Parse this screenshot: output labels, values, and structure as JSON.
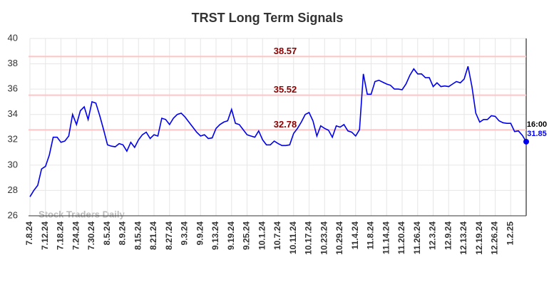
{
  "chart_data": {
    "type": "line",
    "title": "TRST Long Term Signals",
    "categories": [
      "7.8.24",
      null,
      null,
      null,
      "7.12.24",
      null,
      null,
      null,
      "7.18.24",
      null,
      null,
      null,
      "7.24.24",
      null,
      null,
      null,
      "7.30.24",
      null,
      null,
      null,
      "8.5.24",
      null,
      null,
      null,
      "8.9.24",
      null,
      null,
      null,
      "8.15.24",
      null,
      null,
      null,
      "8.21.24",
      null,
      null,
      null,
      "8.27.24",
      null,
      null,
      null,
      "9.3.24",
      null,
      null,
      null,
      "9.9.24",
      null,
      null,
      null,
      "9.13.24",
      null,
      null,
      null,
      "9.19.24",
      null,
      null,
      null,
      "9.25.24",
      null,
      null,
      null,
      "10.1.24",
      null,
      null,
      null,
      "10.7.24",
      null,
      null,
      null,
      "10.11.24",
      null,
      null,
      null,
      "10.17.24",
      null,
      null,
      null,
      "10.23.24",
      null,
      null,
      null,
      "10.29.24",
      null,
      null,
      null,
      "11.4.24",
      null,
      null,
      null,
      "11.8.24",
      null,
      null,
      null,
      "11.14.24",
      null,
      null,
      null,
      "11.20.24",
      null,
      null,
      null,
      "11.26.24",
      null,
      null,
      null,
      "12.3.24",
      null,
      null,
      null,
      "12.9.24",
      null,
      null,
      null,
      "12.13.24",
      null,
      null,
      null,
      "12.19.24",
      null,
      null,
      null,
      "12.26.24",
      null,
      null,
      null,
      "1.2.25",
      null,
      null,
      null,
      null
    ],
    "values": [
      27.5,
      28.0,
      28.4,
      29.7,
      29.9,
      30.8,
      32.2,
      32.2,
      31.8,
      31.9,
      32.3,
      34.0,
      33.2,
      34.3,
      34.6,
      33.6,
      35.0,
      34.9,
      33.9,
      32.8,
      31.6,
      31.5,
      31.45,
      31.7,
      31.6,
      31.1,
      31.8,
      31.4,
      32.0,
      32.4,
      32.6,
      32.1,
      32.4,
      32.3,
      33.7,
      33.6,
      33.2,
      33.7,
      34.0,
      34.1,
      33.8,
      33.4,
      33.0,
      32.6,
      32.3,
      32.4,
      32.1,
      32.15,
      32.9,
      33.2,
      33.4,
      33.5,
      34.4,
      33.3,
      33.2,
      32.8,
      32.4,
      32.3,
      32.2,
      32.7,
      32.0,
      31.6,
      31.6,
      31.9,
      31.7,
      31.55,
      31.55,
      31.6,
      32.5,
      32.9,
      33.4,
      34.0,
      34.15,
      33.5,
      32.3,
      33.1,
      32.9,
      32.75,
      32.2,
      33.1,
      33.0,
      33.2,
      32.7,
      32.6,
      32.3,
      32.8,
      37.2,
      35.6,
      35.6,
      36.6,
      36.7,
      36.55,
      36.4,
      36.3,
      36.0,
      36.0,
      35.95,
      36.4,
      37.1,
      37.6,
      37.2,
      37.2,
      36.9,
      36.9,
      36.2,
      36.5,
      36.2,
      36.25,
      36.2,
      36.4,
      36.6,
      36.5,
      36.8,
      37.8,
      36.2,
      34.1,
      33.4,
      33.6,
      33.6,
      33.9,
      33.85,
      33.5,
      33.35,
      33.3,
      33.3,
      32.65,
      32.7,
      32.35,
      31.85
    ],
    "color": "#0000ee",
    "last_time": "16:00",
    "hlines": [
      38.57,
      35.52,
      32.78
    ],
    "hline_color": "#ffc4c4",
    "hline_label_color": "#8b0000",
    "watermark": "Stock Traders Daily",
    "ylim": [
      26,
      40
    ],
    "yticks": [
      26,
      28,
      30,
      32,
      34,
      36,
      38,
      40
    ],
    "grid": true
  }
}
